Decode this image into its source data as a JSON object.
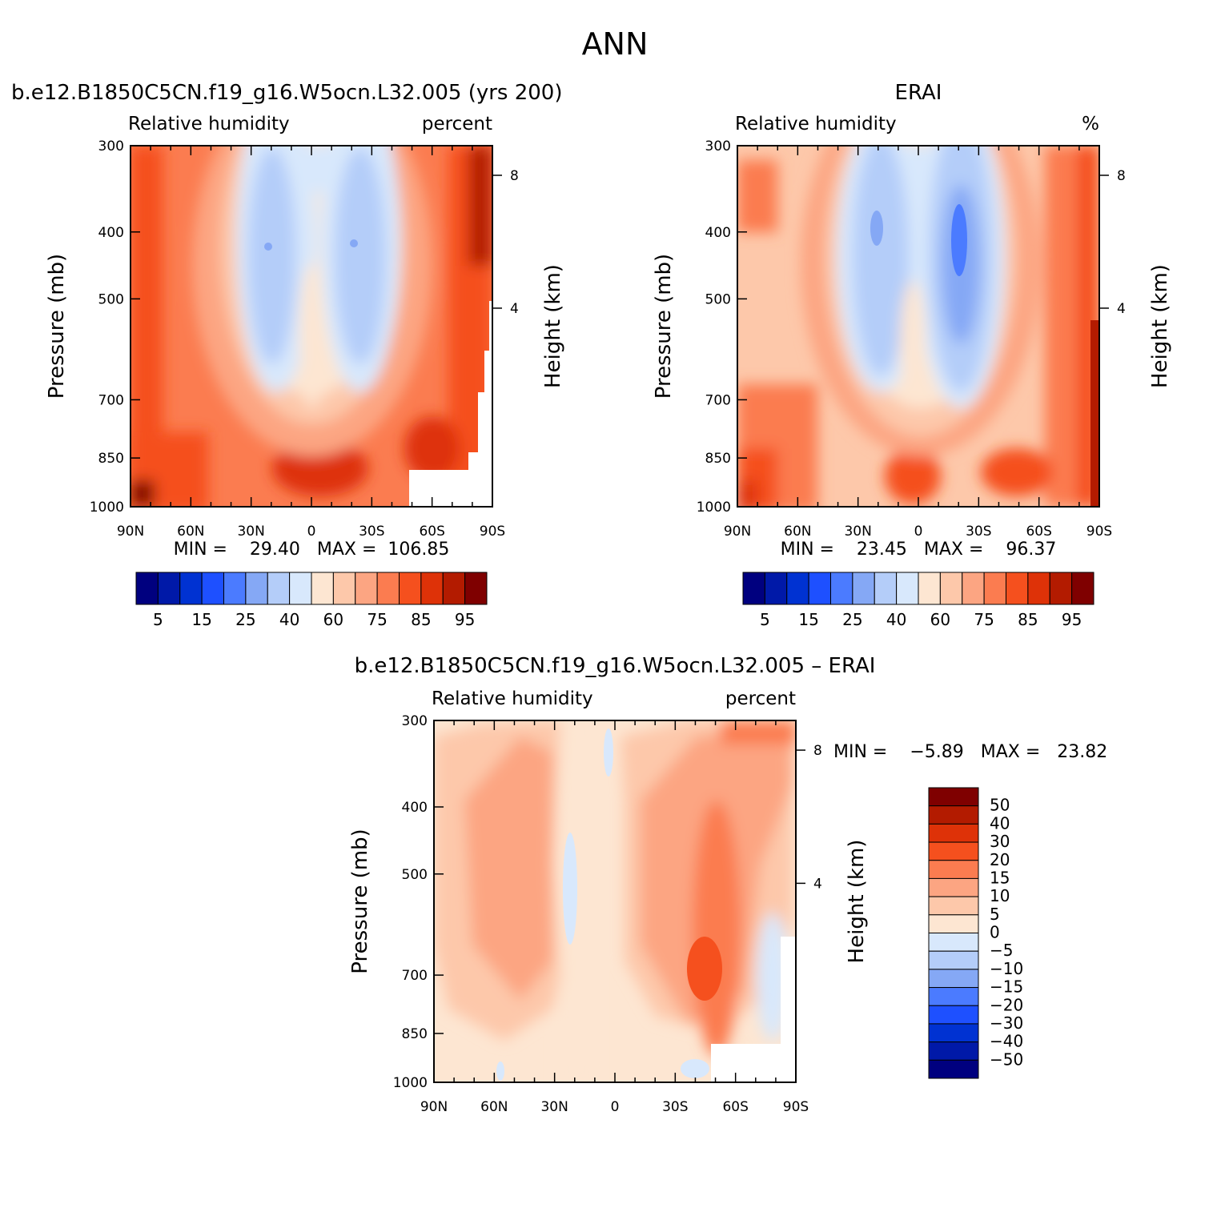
{
  "page": {
    "title": "ANN"
  },
  "panels": [
    {
      "id": "model",
      "title": "b.e12.B1850C5CN.f19_g16.W5ocn.L32.005 (yrs 200)",
      "variable": "Relative humidity",
      "units": "percent",
      "stats": "MIN =    29.40   MAX =  106.85",
      "colorbar_labels": [
        "5",
        "15",
        "25",
        "40",
        "60",
        "75",
        "85",
        "95"
      ]
    },
    {
      "id": "obs",
      "title": "ERAI",
      "variable": "Relative humidity",
      "units": "%",
      "stats": "MIN =    23.45   MAX =    96.37",
      "colorbar_labels": [
        "5",
        "15",
        "25",
        "40",
        "60",
        "75",
        "85",
        "95"
      ]
    },
    {
      "id": "diff",
      "title": "b.e12.B1850C5CN.f19_g16.W5ocn.L32.005 – ERAI",
      "variable": "Relative humidity",
      "units": "percent",
      "stats": "MIN =    −5.89   MAX =   23.82",
      "colorbar_labels": [
        "50",
        "40",
        "30",
        "20",
        "15",
        "10",
        "5",
        "0",
        "−5",
        "−10",
        "−15",
        "−20",
        "−30",
        "−40",
        "−50"
      ]
    }
  ],
  "chart_data": [
    {
      "type": "heatmap",
      "title": "b.e12.B1850C5CN.f19_g16.W5ocn.L32.005 (yrs 200)",
      "xlabel": "",
      "ylabel": "Pressure (mb)",
      "y2label": "Height (km)",
      "x_ticks": [
        "90N",
        "60N",
        "30N",
        "0",
        "30S",
        "60S",
        "90S"
      ],
      "x_values": [
        90,
        60,
        30,
        0,
        -30,
        -60,
        -90
      ],
      "y_ticks": [
        "300",
        "400",
        "500",
        "700",
        "850",
        "1000"
      ],
      "y_values": [
        300,
        400,
        500,
        700,
        850,
        1000
      ],
      "y2_ticks": [
        "8",
        "4"
      ],
      "y2_values": [
        8,
        4
      ],
      "ylim": [
        1000,
        300
      ],
      "yscale": "log",
      "levels": [
        5,
        10,
        15,
        20,
        25,
        30,
        40,
        50,
        60,
        70,
        75,
        80,
        85,
        90,
        95
      ],
      "colors": [
        "#00007f",
        "#0019a8",
        "#0032d2",
        "#1e50ff",
        "#4b7bff",
        "#85a8f5",
        "#b4cdf9",
        "#d8e8fc",
        "#fde6d2",
        "#fdc8aa",
        "#fca582",
        "#fb7c50",
        "#f5501e",
        "#de3208",
        "#b31b00",
        "#7f0000"
      ],
      "min": 29.4,
      "max": 106.85
    },
    {
      "type": "heatmap",
      "title": "ERAI",
      "ylabel": "Pressure (mb)",
      "y2label": "Height (km)",
      "x_ticks": [
        "90N",
        "60N",
        "30N",
        "0",
        "30S",
        "60S",
        "90S"
      ],
      "x_values": [
        90,
        60,
        30,
        0,
        -30,
        -60,
        -90
      ],
      "y_ticks": [
        "300",
        "400",
        "500",
        "700",
        "850",
        "1000"
      ],
      "y_values": [
        300,
        400,
        500,
        700,
        850,
        1000
      ],
      "y2_ticks": [
        "8",
        "4"
      ],
      "y2_values": [
        8,
        4
      ],
      "ylim": [
        1000,
        300
      ],
      "yscale": "log",
      "levels": [
        5,
        10,
        15,
        20,
        25,
        30,
        40,
        50,
        60,
        70,
        75,
        80,
        85,
        90,
        95
      ],
      "colors": [
        "#00007f",
        "#0019a8",
        "#0032d2",
        "#1e50ff",
        "#4b7bff",
        "#85a8f5",
        "#b4cdf9",
        "#d8e8fc",
        "#fde6d2",
        "#fdc8aa",
        "#fca582",
        "#fb7c50",
        "#f5501e",
        "#de3208",
        "#b31b00",
        "#7f0000"
      ],
      "min": 23.45,
      "max": 96.37
    },
    {
      "type": "heatmap",
      "title": "b.e12.B1850C5CN.f19_g16.W5ocn.L32.005 – ERAI",
      "ylabel": "Pressure (mb)",
      "y2label": "Height (km)",
      "x_ticks": [
        "90N",
        "60N",
        "30N",
        "0",
        "30S",
        "60S",
        "90S"
      ],
      "x_values": [
        90,
        60,
        30,
        0,
        -30,
        -60,
        -90
      ],
      "y_ticks": [
        "300",
        "400",
        "500",
        "700",
        "850",
        "1000"
      ],
      "y_values": [
        300,
        400,
        500,
        700,
        850,
        1000
      ],
      "y2_ticks": [
        "8",
        "4"
      ],
      "y2_values": [
        8,
        4
      ],
      "ylim": [
        1000,
        300
      ],
      "yscale": "log",
      "levels": [
        -50,
        -40,
        -30,
        -20,
        -15,
        -10,
        -5,
        0,
        5,
        10,
        15,
        20,
        30,
        40,
        50
      ],
      "colors": [
        "#00007f",
        "#0019a8",
        "#0032d2",
        "#1e50ff",
        "#4b7bff",
        "#85a8f5",
        "#b4cdf9",
        "#d8e8fc",
        "#fde6d2",
        "#fdc8aa",
        "#fca582",
        "#fb7c50",
        "#f5501e",
        "#de3208",
        "#b31b00",
        "#7f0000"
      ],
      "min": -5.89,
      "max": 23.82
    }
  ]
}
